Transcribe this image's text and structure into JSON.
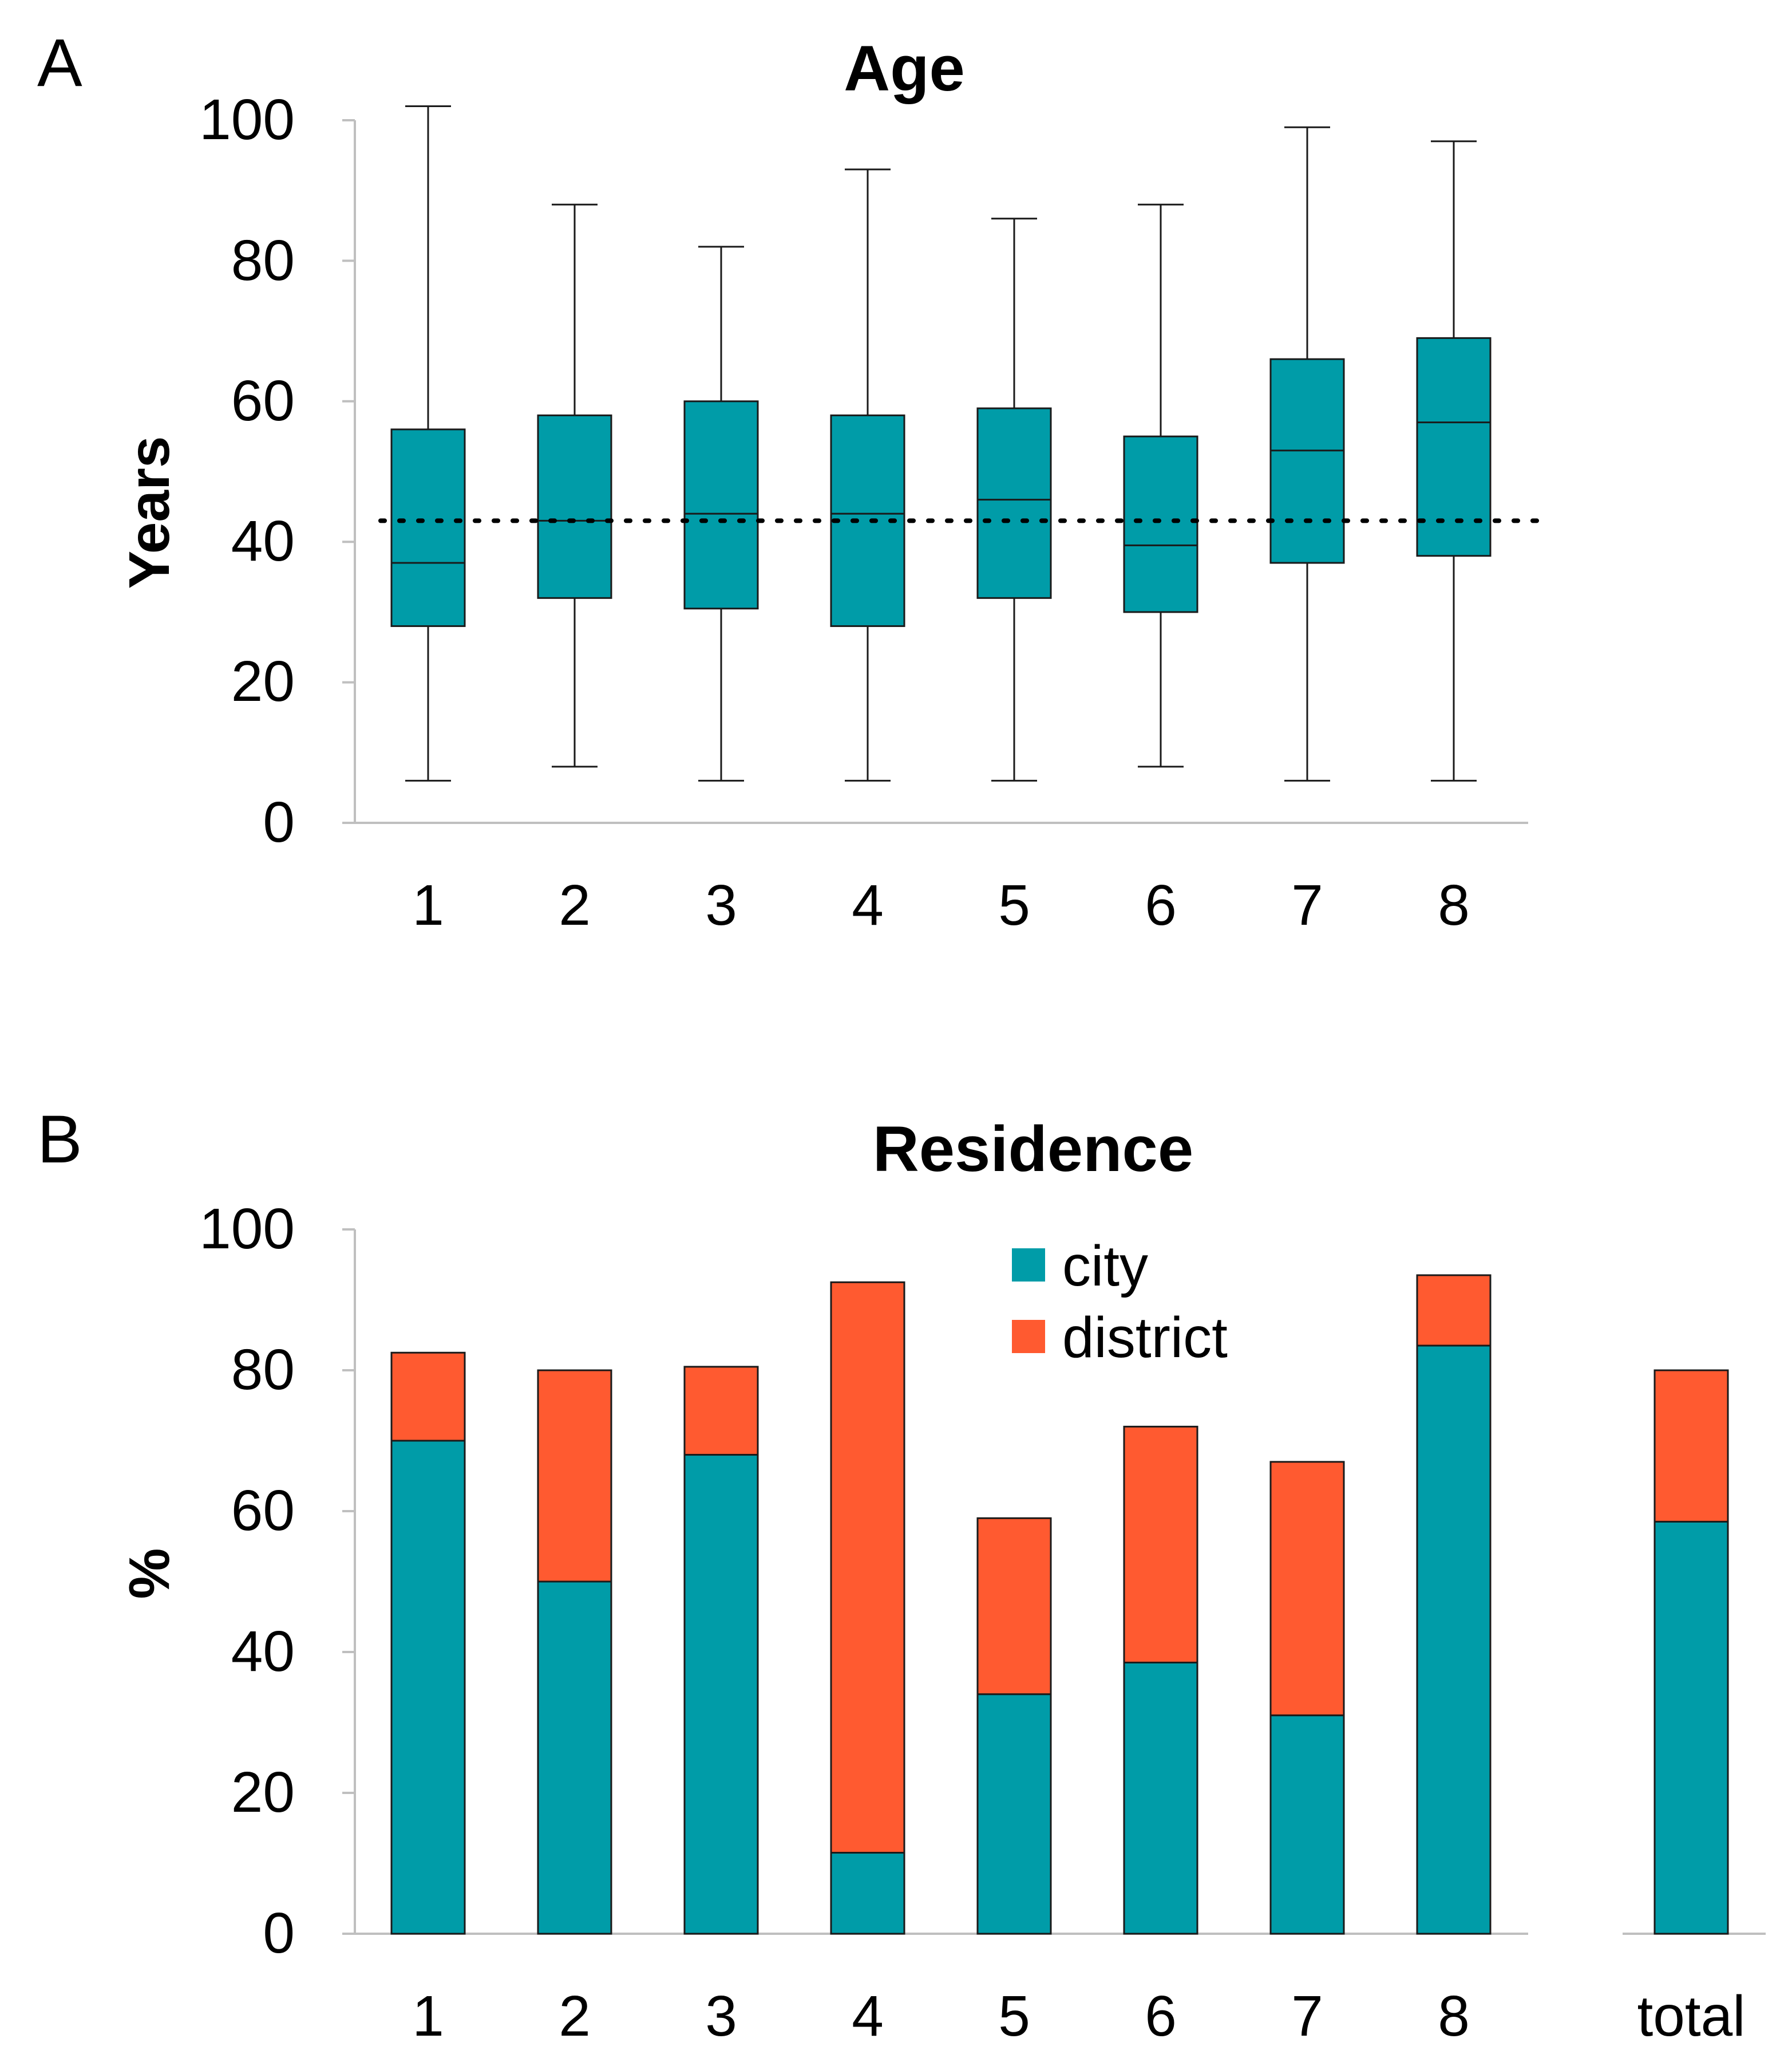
{
  "chart_data": [
    {
      "panel_label": "A",
      "type": "box",
      "title": "Age",
      "xlabel": "",
      "ylabel": "Years",
      "ylim": [
        0,
        100
      ],
      "yticks": [
        0,
        20,
        40,
        60,
        80,
        100
      ],
      "categories": [
        "1",
        "2",
        "3",
        "4",
        "5",
        "6",
        "7",
        "8"
      ],
      "boxes": [
        {
          "min": 6,
          "q1": 28,
          "median": 37,
          "q3": 56,
          "max": 102
        },
        {
          "min": 8,
          "q1": 32,
          "median": 43,
          "q3": 58,
          "max": 88
        },
        {
          "min": 6,
          "q1": 30.5,
          "median": 44,
          "q3": 60,
          "max": 82
        },
        {
          "min": 6,
          "q1": 28,
          "median": 44,
          "q3": 58,
          "max": 93
        },
        {
          "min": 6,
          "q1": 32,
          "median": 46,
          "q3": 59,
          "max": 86
        },
        {
          "min": 8,
          "q1": 30,
          "median": 39.5,
          "q3": 55,
          "max": 88
        },
        {
          "min": 6,
          "q1": 37,
          "median": 53,
          "q3": 66,
          "max": 99
        },
        {
          "min": 6,
          "q1": 38,
          "median": 57,
          "q3": 69,
          "max": 97
        }
      ],
      "reference_line": 43,
      "grid": false,
      "colors": {
        "box": "#009ca8",
        "outline": "#1a1a1a",
        "axis": "#bfbfbf"
      }
    },
    {
      "panel_label": "B",
      "type": "bar",
      "stacked": true,
      "title": "Residence",
      "xlabel": "",
      "ylabel": "%",
      "ylim": [
        0,
        100
      ],
      "yticks": [
        0,
        20,
        40,
        60,
        80,
        100
      ],
      "categories": [
        "1",
        "2",
        "3",
        "4",
        "5",
        "6",
        "7",
        "8",
        "total"
      ],
      "series": [
        {
          "name": "city",
          "color": "#009ca8",
          "values": [
            70,
            50,
            68,
            11.5,
            34,
            38.5,
            31,
            83.5,
            58.5
          ]
        },
        {
          "name": "district",
          "color": "#ff5a30",
          "values": [
            12.5,
            30,
            12.5,
            81,
            25,
            33.5,
            36,
            10,
            21.5
          ]
        }
      ],
      "legend": {
        "position": "top-center",
        "entries": [
          "city",
          "district"
        ]
      },
      "grid": false,
      "colors": {
        "outline": "#1a1a1a",
        "axis": "#bfbfbf"
      }
    }
  ]
}
